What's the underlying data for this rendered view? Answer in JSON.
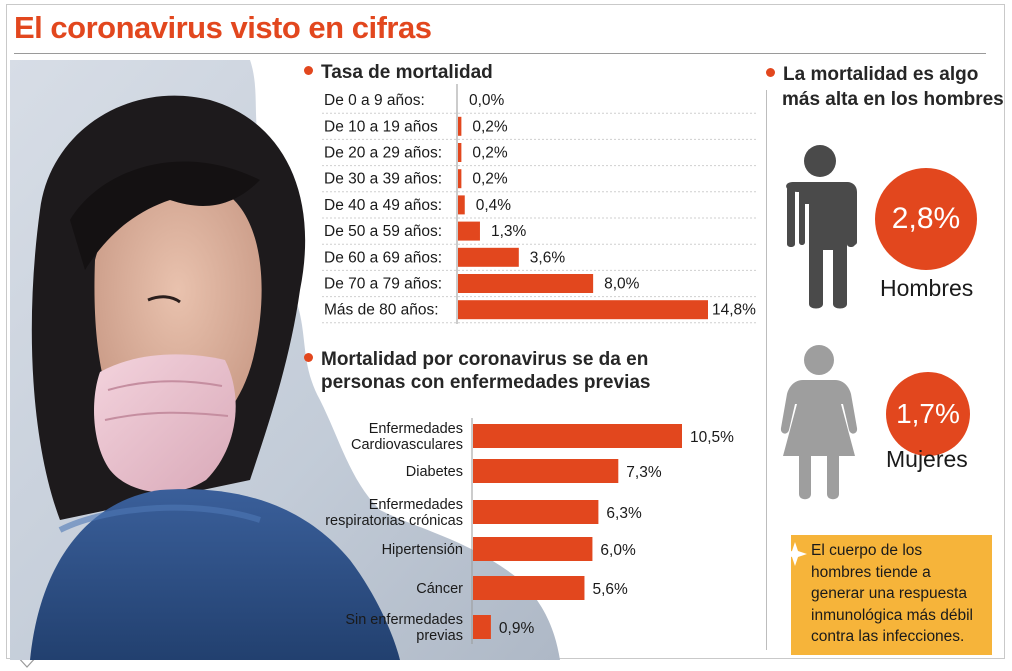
{
  "title": "El coronavirus visto en cifras",
  "colors": {
    "accent": "#e2471e",
    "note_bg": "#f6b43a",
    "male_icon": "#4a4a4a",
    "female_icon": "#9e9e9e"
  },
  "icons": [
    "male-person-icon",
    "female-person-icon",
    "star-icon",
    "pointer-icon"
  ],
  "age_section": {
    "title": "Tasa de mortalidad"
  },
  "disease_section": {
    "title_line1": "Mortalidad por coronavirus se da en",
    "title_line2": "personas con enfermedades previas"
  },
  "gender_section": {
    "title_line1": "La mortalidad es algo",
    "title_line2": "más alta en los hombres",
    "men": {
      "value": "2,8%",
      "label": "Hombres"
    },
    "women": {
      "value": "1,7%",
      "label": "Mujeres"
    }
  },
  "note": {
    "lines": [
      "El cuerpo de los",
      "hombres tiende a",
      "generar una respuesta",
      "inmunológica más débil",
      "contra las infecciones."
    ]
  },
  "chart_data": [
    {
      "type": "bar",
      "orientation": "horizontal",
      "title": "Tasa de mortalidad",
      "categories": [
        "De 0 a 9 años:",
        "De 10 a 19 años",
        "De 20 a 29 años:",
        "De 30 a 39 años:",
        "De 40 a 49 años:",
        "De 50 a 59 años:",
        "De 60 a 69 años:",
        "De 70 a 79 años:",
        "Más de 80 años:"
      ],
      "values": [
        0.0,
        0.2,
        0.2,
        0.2,
        0.4,
        1.3,
        3.6,
        8.0,
        14.8
      ],
      "labels": [
        "0,0%",
        "0,2%",
        "0,2%",
        "0,2%",
        "0,4%",
        "1,3%",
        "3,6%",
        "8,0%",
        "14,8%"
      ],
      "xlim": [
        0,
        14.8
      ],
      "grid": false,
      "color": "#e2471e"
    },
    {
      "type": "bar",
      "orientation": "horizontal",
      "title": "Mortalidad por coronavirus se da en personas con enfermedades previas",
      "categories": [
        [
          "Enfermedades",
          "Cardiovasculares"
        ],
        [
          "Diabetes"
        ],
        [
          "Enfermedades",
          "respiratorias crónicas"
        ],
        [
          "Hipertensión"
        ],
        [
          "Cáncer"
        ],
        [
          "Sin enfermedades",
          "previas"
        ]
      ],
      "values": [
        10.5,
        7.3,
        6.3,
        6.0,
        5.6,
        0.9
      ],
      "labels": [
        "10,5%",
        "7,3%",
        "6,3%",
        "6,0%",
        "5,6%",
        "0,9%"
      ],
      "xlim": [
        0,
        10.5
      ],
      "grid": false,
      "color": "#e2471e"
    }
  ]
}
